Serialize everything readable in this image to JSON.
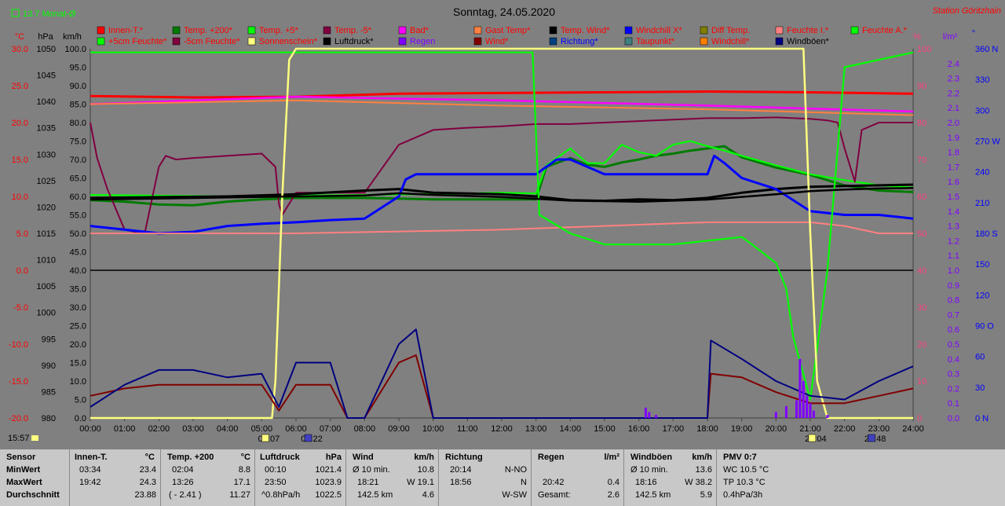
{
  "header": {
    "title": "Sonntag, 24.05.2020",
    "station": "Station Göritzhain",
    "month_avg": "13.7 Monat-Ø",
    "start_time": "15:57"
  },
  "axis_units": {
    "celsius": "°C",
    "hpa": "hPa",
    "kmh": "km/h",
    "percent": "%",
    "lm2": "l/m²",
    "degree": "°"
  },
  "colors": {
    "Innen-T.*": "#ff0000",
    "Temp. +200*": "#007a00",
    "Temp. +5*": "#00ff00",
    "Temp. -5*": "#800040",
    "Bad*": "#ff00ff",
    "Gast Temp*": "#ff8040",
    "Temp. Wind*": "#000000",
    "Windchill X*": "#0000ff",
    "Diff Temp.": "#808000",
    "Feuchte I.*": "#ff8080",
    "Feuchte A.*": "#00ff00",
    "+5cm Feuchte*": "#00ff00",
    "-5cm Feuchte*": "#800040",
    "Sonnenschein*": "#ffff80",
    "Luftdruck*": "#000000",
    "Regen": "#8000ff",
    "Wind*": "#800000",
    "Richtung*": "#004080",
    "Taupunkt*": "#408080",
    "Windchill*": "#ff8000",
    "Windböen*": "#000080"
  },
  "legend_text_colors": {
    "Innen-T.*": "#ff0000",
    "Temp. +200*": "#ff0000",
    "Temp. +5*": "#ff0000",
    "Temp. -5*": "#ff0000",
    "Bad*": "#ff0000",
    "Gast Temp*": "#ff0000",
    "Temp. Wind*": "#ff0000",
    "Windchill X*": "#ff0000",
    "Diff Temp.": "#ff0000",
    "Feuchte I.*": "#ff0000",
    "Feuchte A.*": "#ff0000",
    "+5cm Feuchte*": "#ff0000",
    "-5cm Feuchte*": "#ff0000",
    "Sonnenschein*": "#ff0000",
    "Luftdruck*": "#000000",
    "Regen": "#8000ff",
    "Wind*": "#ff0000",
    "Richtung*": "#0000ff",
    "Taupunkt*": "#ff0000",
    "Windchill*": "#ff0000",
    "Windböen*": "#000000"
  },
  "markers": [
    {
      "time": "05:07",
      "icon": "sunrise-icon"
    },
    {
      "time": "06:22",
      "icon": "moonrise-icon"
    },
    {
      "time": "21:04",
      "icon": "sunset-icon"
    },
    {
      "time": "22:48",
      "icon": "moonset-icon"
    }
  ],
  "chart_data": {
    "type": "line",
    "title": "Sonntag, 24.05.2020",
    "x_ticks": [
      "00:00",
      "01:00",
      "02:00",
      "03:00",
      "04:00",
      "05:00",
      "06:00",
      "07:00",
      "08:00",
      "09:00",
      "10:00",
      "11:00",
      "12:00",
      "13:00",
      "14:00",
      "15:00",
      "16:00",
      "17:00",
      "18:00",
      "19:00",
      "20:00",
      "21:00",
      "22:00",
      "23:00",
      "24:00"
    ],
    "x_range": [
      0,
      24
    ],
    "axes": {
      "celsius": {
        "range": [
          -20,
          30
        ],
        "ticks": [
          "30.0",
          "25.0",
          "20.0",
          "15.0",
          "10.0",
          "5.0",
          "0.0",
          "-5.0",
          "-10.0",
          "-15.0",
          "-20.0"
        ]
      },
      "hpa": {
        "range": [
          980,
          1050
        ],
        "ticks": [
          "1050",
          "1045",
          "1040",
          "1035",
          "1030",
          "1025",
          "1020",
          "1015",
          "1010",
          "1005",
          "1000",
          "995",
          "990",
          "985",
          "980"
        ]
      },
      "kmh": {
        "range": [
          0,
          100
        ],
        "ticks": [
          "100.0",
          "95.0",
          "90.0",
          "85.0",
          "80.0",
          "75.0",
          "70.0",
          "65.0",
          "60.0",
          "55.0",
          "50.0",
          "45.0",
          "40.0",
          "35.0",
          "30.0",
          "25.0",
          "20.0",
          "15.0",
          "10.0",
          "5.0",
          "0.0"
        ]
      },
      "percent": {
        "range": [
          0,
          100
        ],
        "ticks": [
          "100",
          "90",
          "80",
          "70",
          "60",
          "50",
          "40",
          "30",
          "20",
          "10",
          "0"
        ]
      },
      "lm2": {
        "range": [
          0,
          2.5
        ],
        "ticks": [
          "2.4",
          "2.3",
          "2.2",
          "2.1",
          "2.0",
          "1.9",
          "1.8",
          "1.7",
          "1.6",
          "1.5",
          "1.4",
          "1.3",
          "1.2",
          "1.1",
          "1.0",
          "0.9",
          "0.8",
          "0.7",
          "0.6",
          "0.5",
          "0.4",
          "0.3",
          "0.2",
          "0.1",
          "0.0"
        ]
      },
      "degree": {
        "range": [
          0,
          360
        ],
        "ticks": [
          "360 N",
          "330",
          "300",
          "270 W",
          "240",
          "210",
          "180 S",
          "150",
          "120",
          "90 O",
          "60",
          "30",
          "0 N"
        ]
      }
    },
    "grid": false,
    "legend_placement": "top",
    "series": [
      {
        "name": "Innen-T.*",
        "axis": "celsius",
        "x": [
          0,
          3,
          6,
          9,
          12,
          15,
          18,
          21,
          24
        ],
        "y": [
          23.6,
          23.4,
          23.5,
          23.9,
          24.0,
          24.1,
          24.2,
          24.1,
          23.9
        ]
      },
      {
        "name": "Temp. +200*",
        "axis": "celsius",
        "x": [
          0,
          1,
          2,
          3,
          4,
          5,
          6,
          7,
          8,
          9,
          10,
          11,
          12,
          13,
          13.3,
          14,
          14.5,
          15,
          15.5,
          16,
          16.5,
          17,
          17.5,
          18,
          18.5,
          19,
          20,
          21,
          22,
          23,
          24
        ],
        "y": [
          9.5,
          9.3,
          8.9,
          8.8,
          9.3,
          9.6,
          9.8,
          9.8,
          9.8,
          9.7,
          9.6,
          9.6,
          9.6,
          9.6,
          14.0,
          15.2,
          14.3,
          14.0,
          14.6,
          15.0,
          15.5,
          15.8,
          16.2,
          16.5,
          16.8,
          15.3,
          13.9,
          12.9,
          11.5,
          10.8,
          10.6
        ]
      },
      {
        "name": "Temp. +5*",
        "axis": "celsius",
        "x": [
          0,
          4,
          8,
          11,
          12,
          13,
          13.3,
          14,
          14.5,
          15,
          15.5,
          16,
          16.5,
          17,
          17.5,
          18,
          18.5,
          19,
          20,
          21,
          22,
          23,
          24
        ],
        "y": [
          10.2,
          10.0,
          10.2,
          10.4,
          10.5,
          10.4,
          14.2,
          16.5,
          14.5,
          14.5,
          17.0,
          16.0,
          15.5,
          17.0,
          17.5,
          16.8,
          16.2,
          15.5,
          14.2,
          13.0,
          12.2,
          11.5,
          11.2
        ]
      },
      {
        "name": "Temp. -5*",
        "axis": "celsius",
        "x": [
          0,
          0.2,
          0.5,
          1,
          1.3,
          1.6,
          2,
          2.2,
          2.5,
          3,
          4,
          5,
          5.4,
          5.5,
          5.6,
          6,
          7,
          8,
          9,
          10,
          11,
          12,
          13,
          14,
          15,
          16,
          17,
          18,
          19,
          20,
          21,
          21.5,
          21.8,
          22,
          22.3,
          22.5,
          23,
          24
        ],
        "y": [
          20.0,
          15.2,
          11.0,
          5.5,
          5.2,
          5.3,
          14.0,
          15.5,
          15.0,
          15.2,
          15.5,
          15.8,
          14.0,
          9.0,
          7.5,
          10.5,
          10.5,
          10.5,
          17.0,
          19.0,
          19.3,
          19.5,
          19.8,
          19.8,
          20.0,
          20.2,
          20.4,
          20.6,
          20.6,
          20.7,
          20.5,
          20.3,
          20.0,
          16.5,
          12.0,
          19.0,
          20.0,
          20.0
        ]
      },
      {
        "name": "Bad*",
        "axis": "celsius",
        "x": [
          0,
          6,
          12,
          18,
          24
        ],
        "y": [
          22.5,
          23.5,
          23.0,
          22.3,
          21.5
        ]
      },
      {
        "name": "Gast Temp*",
        "axis": "celsius",
        "x": [
          0,
          6,
          12,
          18,
          24
        ],
        "y": [
          22.5,
          23.0,
          22.3,
          21.8,
          21.0
        ]
      },
      {
        "name": "Temp. Wind*",
        "axis": "celsius",
        "x": [
          0,
          2,
          4,
          6,
          8,
          9,
          10,
          12,
          13,
          14,
          15,
          16,
          17,
          18,
          19,
          20,
          21,
          22,
          23,
          24
        ],
        "y": [
          9.8,
          9.9,
          10.0,
          10.3,
          10.8,
          11.0,
          10.5,
          10.3,
          10.0,
          9.5,
          9.4,
          9.6,
          9.5,
          9.8,
          10.5,
          11.0,
          11.3,
          11.4,
          11.5,
          11.6
        ]
      },
      {
        "name": "Windchill X*",
        "axis": "celsius",
        "x": [
          0,
          1,
          2,
          3,
          4,
          5,
          6,
          7,
          8,
          8.5,
          9,
          9.2,
          9.5,
          10,
          11,
          12,
          13,
          13.3,
          13.6,
          14,
          15,
          16,
          17,
          18,
          18.2,
          18.5,
          19,
          20,
          21,
          22,
          23,
          24
        ],
        "y": [
          6.0,
          5.5,
          5.0,
          5.2,
          6.0,
          6.3,
          6.5,
          6.8,
          7.0,
          8.5,
          10.0,
          12.3,
          13.0,
          13.0,
          13.0,
          13.0,
          13.0,
          14.0,
          15.0,
          15.0,
          13.0,
          13.0,
          13.0,
          13.0,
          15.5,
          14.5,
          12.5,
          11.0,
          8.0,
          7.5,
          7.5,
          7.0
        ]
      },
      {
        "name": "Feuchte I.*",
        "axis": "percent",
        "x": [
          0,
          6,
          12,
          18,
          21,
          22,
          23,
          24
        ],
        "y": [
          50,
          50,
          51,
          53,
          53,
          52,
          50,
          50
        ]
      },
      {
        "name": "Feuchte A.*",
        "axis": "percent",
        "x": [
          0,
          1,
          4,
          8,
          10,
          12,
          12.9,
          13.1,
          14,
          15,
          16,
          17,
          18,
          19,
          19.3,
          20,
          20.3,
          20.5,
          21,
          21.5,
          22,
          24
        ],
        "y": [
          99,
          99,
          99,
          99,
          99,
          99,
          99,
          55,
          50,
          47,
          47,
          47,
          48,
          49,
          47,
          42,
          35,
          22,
          5,
          40,
          95,
          99
        ]
      },
      {
        "name": "Sonnenschein*",
        "axis": "percent",
        "x": [
          0,
          5.3,
          5.4,
          5.6,
          5.8,
          6,
          12,
          18,
          20,
          20.8,
          21,
          21.2,
          21.5,
          22,
          24
        ],
        "y": [
          0,
          0,
          10,
          60,
          97,
          100,
          100,
          100,
          100,
          100,
          50,
          10,
          0,
          0,
          0
        ]
      },
      {
        "name": "Luftdruck*",
        "axis": "hpa",
        "x": [
          0,
          4,
          8,
          9,
          10,
          12,
          14,
          16,
          18,
          20,
          21,
          22,
          23,
          24
        ],
        "y": [
          1021.4,
          1021.8,
          1022.2,
          1022.6,
          1022.3,
          1021.9,
          1021.2,
          1021.0,
          1021.4,
          1022.4,
          1023.0,
          1023.3,
          1023.5,
          1023.6
        ]
      },
      {
        "name": "Wind*",
        "axis": "kmh",
        "x": [
          0,
          1,
          2,
          3,
          4,
          5,
          5.5,
          6,
          7,
          7.5,
          8,
          9,
          9.5,
          10,
          11,
          12,
          13,
          14,
          17,
          18,
          18.1,
          19,
          20,
          21,
          22,
          23,
          24
        ],
        "y": [
          6,
          8,
          9,
          9,
          9,
          9,
          2,
          9,
          9,
          0,
          0,
          15,
          17,
          0,
          0,
          0,
          0,
          0,
          0,
          0,
          12,
          11,
          7,
          4,
          4,
          6,
          8
        ]
      },
      {
        "name": "Windböen*",
        "axis": "kmh",
        "x": [
          0,
          1,
          2,
          3,
          4,
          5,
          5.5,
          6,
          7,
          7.5,
          8,
          9,
          9.5,
          10,
          11,
          12,
          13,
          14,
          17,
          18,
          18.1,
          19,
          20,
          21,
          22,
          23,
          24
        ],
        "y": [
          3,
          9,
          13,
          13,
          11,
          12,
          3,
          15,
          15,
          0,
          0,
          20,
          24,
          0,
          0,
          0,
          0,
          0,
          0,
          0,
          21,
          16,
          10,
          6,
          5,
          10,
          14
        ]
      },
      {
        "name": "Regen",
        "axis": "lm2",
        "x": [
          16.2,
          16.3,
          16.5,
          20.0,
          20.3,
          20.6,
          20.7,
          20.8,
          20.9,
          21.0,
          21.1,
          21.5
        ],
        "y": [
          0.07,
          0.04,
          0.02,
          0.04,
          0.08,
          0.12,
          0.4,
          0.25,
          0.15,
          0.1,
          0.05,
          0.02
        ]
      }
    ]
  },
  "footer": {
    "labels": {
      "sensor": "Sensor",
      "min": "MinWert",
      "max": "MaxWert",
      "avg": "Durchschnitt"
    },
    "innen": {
      "title": "Innen-T.",
      "unit": "°C",
      "min_time": "03:34",
      "min": "23.4",
      "max_time": "19:42",
      "max": "24.3",
      "avg": "23.88"
    },
    "temp": {
      "title": "Temp. +200",
      "unit": "°C",
      "min_time": "02:04",
      "min": "8.8",
      "max_time": "13:26",
      "max": "17.1",
      "avg_note": "( - 2.41 )",
      "avg": "11.27"
    },
    "druck": {
      "title": "Luftdruck",
      "unit": "hPa",
      "min_time": "00:10",
      "min": "1021.4",
      "max_time": "23:50",
      "max": "1023.9",
      "avg_note": "^0.8hPa/h",
      "avg": "1022.5"
    },
    "wind": {
      "title": "Wind",
      "unit": "km/h",
      "min_time": "Ø 10 min.",
      "min": "10.8",
      "max_time": "18:21",
      "max": "W 19.1",
      "avg_note": "142.5 km",
      "avg": "4.6"
    },
    "richtung": {
      "title": "Richtung",
      "min_time": "20:14",
      "min": "N-NO",
      "max_time": "18:56",
      "max": "N",
      "avg": "W-SW"
    },
    "regen": {
      "title": "Regen",
      "unit": "l/m²",
      "max_time": "20:42",
      "max": "0.4",
      "avg_note": "Gesamt:",
      "avg": "2.6"
    },
    "boeen": {
      "title": "Windböen",
      "unit": "km/h",
      "min_time": "Ø 10 min.",
      "min": "13.6",
      "max_time": "18:16",
      "max": "W 38.2",
      "avg_note": "142.5 km",
      "avg": "5.9"
    },
    "pmv": {
      "title": "PMV 0:7",
      "wc": "WC 10.5 °C",
      "tp": "TP 10.3 °C",
      "trend": "0.4hPa/3h"
    }
  }
}
